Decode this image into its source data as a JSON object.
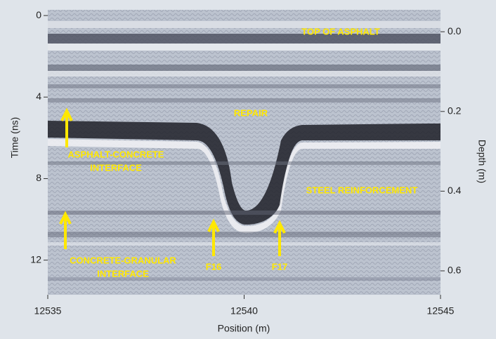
{
  "chart_data": {
    "type": "image",
    "x_label": "Position (m)",
    "y_label": "Time (ns)",
    "y2_label": "Depth (m)",
    "xlim": [
      12535,
      12545
    ],
    "xticks": [
      12535,
      12540,
      12545
    ],
    "ylim": [
      -0.28,
      13.7
    ],
    "yticks": [
      0,
      4,
      8,
      12
    ],
    "y_inverted": true,
    "y2lim": [
      -0.055,
      0.66
    ],
    "y2ticks": [
      {
        "value": 0,
        "label": "0.0"
      },
      0.2,
      0.4,
      0.6
    ],
    "annotations": [
      [
        "TOP OF ASPHALT"
      ],
      [
        "REPAIR"
      ],
      [
        "ASPHALT-CONCRETE",
        "INTERFACE"
      ],
      [
        "STEEL REINFORCEMENT"
      ],
      [
        "CONCRETE-GRANULAR",
        "INTERFACE"
      ],
      [
        "F16"
      ],
      [
        "F17"
      ]
    ]
  }
}
